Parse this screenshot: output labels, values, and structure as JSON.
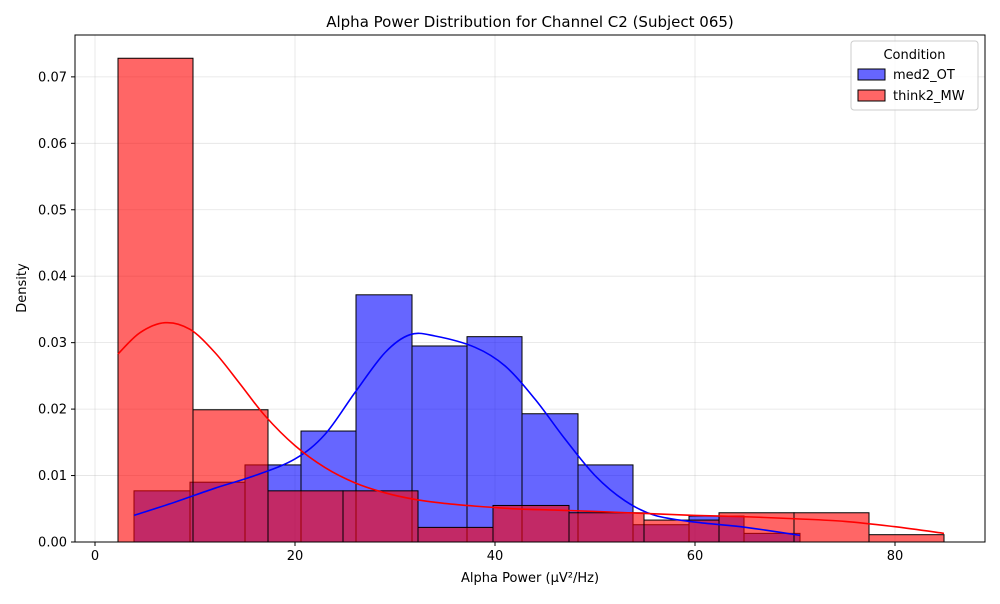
{
  "chart_data": {
    "type": "histogram",
    "title": "Alpha Power Distribution for Channel C2 (Subject 065)",
    "xlabel": "Alpha Power (µV²/Hz)",
    "ylabel": "Density",
    "xlim": [
      -2,
      89
    ],
    "ylim": [
      0,
      0.0763
    ],
    "xticks": [
      0,
      20,
      40,
      60,
      80
    ],
    "yticks": [
      0.0,
      0.01,
      0.02,
      0.03,
      0.04,
      0.05,
      0.06,
      0.07
    ],
    "ytick_labels": [
      "0.00",
      "0.01",
      "0.02",
      "0.03",
      "0.04",
      "0.05",
      "0.06",
      "0.07"
    ],
    "grid": true,
    "legend": {
      "title": "Condition",
      "placement": "top-right"
    },
    "series": [
      {
        "name": "med2_OT",
        "color": "#0000ff",
        "bins": [
          {
            "x0": 3.9,
            "x1": 9.5,
            "y": 0.0077
          },
          {
            "x0": 9.5,
            "x1": 15.0,
            "y": 0.009
          },
          {
            "x0": 15.0,
            "x1": 20.6,
            "y": 0.0116
          },
          {
            "x0": 20.6,
            "x1": 26.1,
            "y": 0.0167
          },
          {
            "x0": 26.1,
            "x1": 31.7,
            "y": 0.0372
          },
          {
            "x0": 31.7,
            "x1": 37.2,
            "y": 0.0295
          },
          {
            "x0": 37.2,
            "x1": 42.7,
            "y": 0.0309
          },
          {
            "x0": 42.7,
            "x1": 48.3,
            "y": 0.0193
          },
          {
            "x0": 48.3,
            "x1": 53.8,
            "y": 0.0116
          },
          {
            "x0": 53.8,
            "x1": 59.4,
            "y": 0.0026
          },
          {
            "x0": 59.4,
            "x1": 64.9,
            "y": 0.0039
          },
          {
            "x0": 64.9,
            "x1": 70.5,
            "y": 0.0013
          }
        ],
        "kde": [
          [
            3.9,
            0.004
          ],
          [
            8,
            0.006
          ],
          [
            12,
            0.0081
          ],
          [
            16,
            0.01
          ],
          [
            20,
            0.0125
          ],
          [
            23,
            0.0162
          ],
          [
            26,
            0.0225
          ],
          [
            29,
            0.0285
          ],
          [
            31.5,
            0.0312
          ],
          [
            34,
            0.031
          ],
          [
            38,
            0.0293
          ],
          [
            41,
            0.0265
          ],
          [
            44,
            0.0215
          ],
          [
            47,
            0.0155
          ],
          [
            50,
            0.01
          ],
          [
            53,
            0.0062
          ],
          [
            56,
            0.004
          ],
          [
            60,
            0.003
          ],
          [
            64,
            0.0024
          ],
          [
            67,
            0.0018
          ],
          [
            70.5,
            0.001
          ]
        ]
      },
      {
        "name": "think2_MW",
        "color": "#ff0000",
        "bins": [
          {
            "x0": 2.3,
            "x1": 9.8,
            "y": 0.0728
          },
          {
            "x0": 9.8,
            "x1": 17.3,
            "y": 0.0199
          },
          {
            "x0": 17.3,
            "x1": 24.8,
            "y": 0.0077
          },
          {
            "x0": 24.8,
            "x1": 32.3,
            "y": 0.0077
          },
          {
            "x0": 32.3,
            "x1": 39.8,
            "y": 0.0022
          },
          {
            "x0": 39.8,
            "x1": 47.4,
            "y": 0.0055
          },
          {
            "x0": 47.4,
            "x1": 54.9,
            "y": 0.0044
          },
          {
            "x0": 54.9,
            "x1": 62.4,
            "y": 0.0033
          },
          {
            "x0": 62.4,
            "x1": 69.9,
            "y": 0.0044
          },
          {
            "x0": 69.9,
            "x1": 77.4,
            "y": 0.0044
          },
          {
            "x0": 77.4,
            "x1": 84.9,
            "y": 0.0011
          }
        ],
        "kde": [
          [
            2.3,
            0.0283
          ],
          [
            4.5,
            0.0315
          ],
          [
            7,
            0.033
          ],
          [
            9.5,
            0.032
          ],
          [
            12,
            0.0285
          ],
          [
            14.5,
            0.0238
          ],
          [
            17,
            0.019
          ],
          [
            20,
            0.0145
          ],
          [
            23,
            0.0112
          ],
          [
            26,
            0.0089
          ],
          [
            29,
            0.0074
          ],
          [
            32,
            0.0064
          ],
          [
            35,
            0.0058
          ],
          [
            38,
            0.0054
          ],
          [
            42,
            0.005
          ],
          [
            46,
            0.0048
          ],
          [
            50,
            0.0046
          ],
          [
            55,
            0.0043
          ],
          [
            60,
            0.004
          ],
          [
            65,
            0.0038
          ],
          [
            70,
            0.0035
          ],
          [
            75,
            0.0031
          ],
          [
            80,
            0.0023
          ],
          [
            84.9,
            0.0013
          ]
        ]
      }
    ]
  }
}
